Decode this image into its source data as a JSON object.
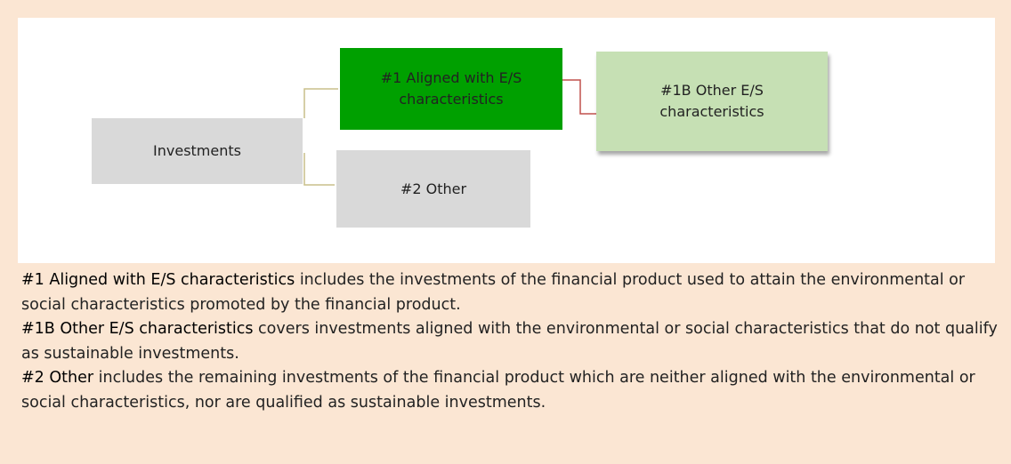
{
  "nodes": [
    {
      "label": "Investments"
    },
    {
      "label": "#1 Aligned with E/S characteristics"
    },
    {
      "label": "#2 Other"
    },
    {
      "label": "#1B Other E/S characteristics"
    }
  ],
  "descriptions": [
    {
      "term": "#1 Aligned with E/S characteristics",
      "text": " includes the investments of the financial product used to attain the environmental or social characteristics promoted by the financial product."
    },
    {
      "term": "#1B Other E/S characteristics",
      "text": " covers investments aligned with the environmental or social characteristics that do not qualify as sustainable investments."
    },
    {
      "term": "#2 Other",
      "text": " includes the remaining investments of the financial product which are neither aligned with the environmental or social characteristics, nor are qualified as sustainable investments."
    }
  ]
}
